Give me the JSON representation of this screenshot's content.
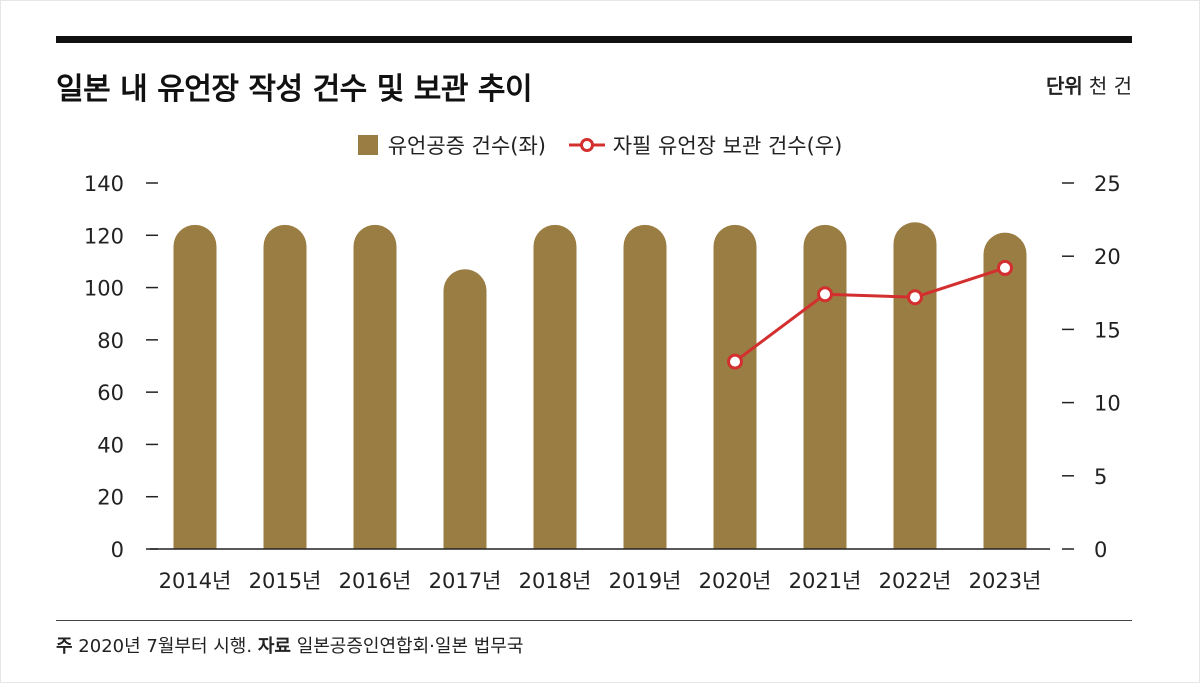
{
  "header": {
    "title": "일본 내 유언장 작성 건수 및 보관 추이",
    "unit_label": "단위",
    "unit_value": "천 건"
  },
  "legend": {
    "bar_label": "유언공증 건수(좌)",
    "line_label": "자필 유언장 보관 건수(우)"
  },
  "colors": {
    "bar": "#9a7d43",
    "line": "#d32f2f",
    "marker_fill": "#ffffff",
    "axis": "#222222"
  },
  "chart_data": {
    "type": "bar",
    "title": "일본 내 유언장 작성 건수 및 보관 추이",
    "categories": [
      "2014년",
      "2015년",
      "2016년",
      "2017년",
      "2018년",
      "2019년",
      "2020년",
      "2021년",
      "2022년",
      "2023년"
    ],
    "series": [
      {
        "name": "유언공증 건수(좌)",
        "type": "bar",
        "axis": "left",
        "values": [
          124,
          124,
          124,
          107,
          124,
          124,
          124,
          124,
          125,
          121
        ]
      },
      {
        "name": "자필 유언장 보관 건수(우)",
        "type": "line",
        "axis": "right",
        "values": [
          null,
          null,
          null,
          null,
          null,
          null,
          12.8,
          17.4,
          17.2,
          19.2
        ]
      }
    ],
    "left_axis": {
      "ylim": [
        0,
        140
      ],
      "ticks": [
        "0",
        "20",
        "40",
        "60",
        "80",
        "100",
        "120",
        "140"
      ]
    },
    "right_axis": {
      "ylim": [
        0,
        25
      ],
      "ticks": [
        "0",
        "5",
        "10",
        "15",
        "20",
        "25"
      ]
    },
    "grid": false,
    "legend_position": "top-center"
  },
  "footer": {
    "note_label": "주",
    "note_text": "2020년 7월부터 시행.",
    "source_label": "자료",
    "source_text": "일본공증인연합회·일본 법무국"
  }
}
